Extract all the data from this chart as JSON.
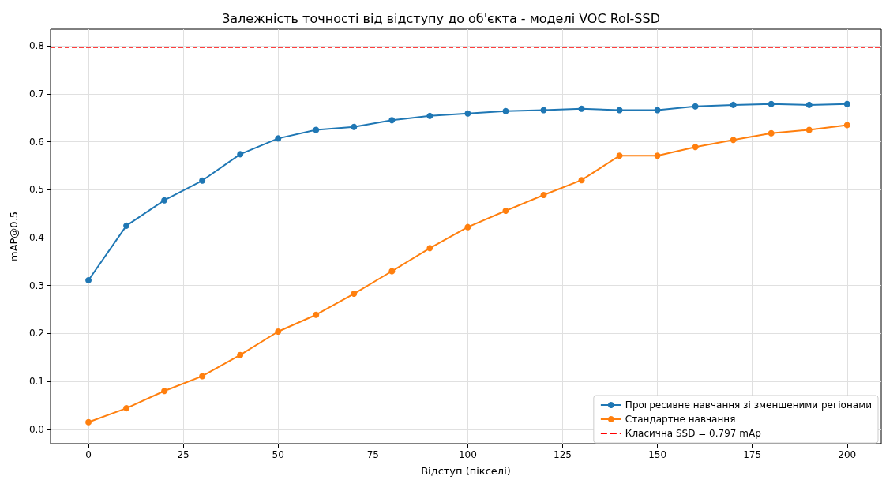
{
  "chart_data": {
    "type": "line",
    "title": "Залежність точності від відступу до об'єкта - моделі VOC RoI-SSD",
    "xlabel": "Відступ (пікселі)",
    "ylabel": "mAP@0.5",
    "x": [
      0,
      10,
      20,
      30,
      40,
      50,
      60,
      70,
      80,
      90,
      100,
      110,
      120,
      130,
      140,
      150,
      160,
      170,
      180,
      190,
      200
    ],
    "series": [
      {
        "name": "Прогресивне навчання зі зменшеними регіонами",
        "color": "#1f77b4",
        "values": [
          0.311,
          0.425,
          0.478,
          0.519,
          0.574,
          0.607,
          0.625,
          0.631,
          0.645,
          0.654,
          0.659,
          0.664,
          0.666,
          0.669,
          0.666,
          0.666,
          0.674,
          0.677,
          0.679,
          0.677,
          0.679
        ]
      },
      {
        "name": "Стандартне навчання",
        "color": "#ff7f0e",
        "values": [
          0.015,
          0.044,
          0.08,
          0.111,
          0.155,
          0.204,
          0.239,
          0.283,
          0.33,
          0.378,
          0.422,
          0.456,
          0.489,
          0.52,
          0.571,
          0.571,
          0.589,
          0.604,
          0.618,
          0.625,
          0.635
        ]
      }
    ],
    "ref_lines": [
      {
        "axis": "y",
        "value": 0.797,
        "label": "Класична SSD = 0.797 mAp",
        "color": "#ff0000",
        "line_style": "dashed"
      }
    ],
    "xlim": [
      -10,
      209
    ],
    "xticks": [
      0,
      25,
      50,
      75,
      100,
      125,
      150,
      175,
      200
    ],
    "ylim": [
      -0.03,
      0.835
    ],
    "yticks": [
      {
        "value": 0,
        "label": "0.0"
      },
      0.1,
      0.2,
      0.3,
      0.4,
      0.5,
      0.6,
      0.7,
      0.8
    ],
    "grid": true,
    "legend": "bottom right",
    "marker": "circle",
    "line_style": "solid"
  }
}
